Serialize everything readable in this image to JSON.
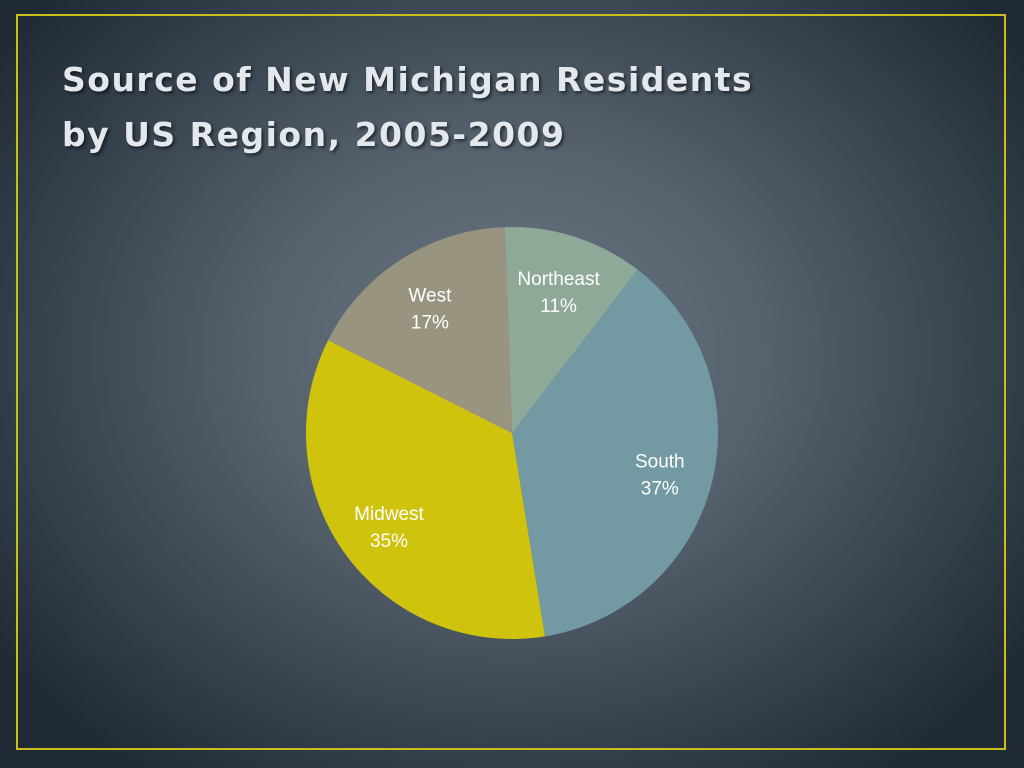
{
  "slide": {
    "title_line1": "Source of New Michigan Residents",
    "title_line2": "by US Region, 2005-2009"
  },
  "colors": {
    "frame": "#c8bf1a",
    "title": "#e4e8ec"
  },
  "chart_data": {
    "type": "pie",
    "title": "Source of New Michigan Residents by US Region, 2005-2009",
    "start_angle_deg": -2,
    "direction": "clockwise",
    "slices": [
      {
        "label": "Northeast",
        "value": 11,
        "display": "11%",
        "color": "#8ea998"
      },
      {
        "label": "South",
        "value": 37,
        "display": "37%",
        "color": "#7399a3"
      },
      {
        "label": "Midwest",
        "value": 35,
        "display": "35%",
        "color": "#d0c30e"
      },
      {
        "label": "West",
        "value": 17,
        "display": "17%",
        "color": "#999480"
      }
    ],
    "legend": "none",
    "data_labels": "on slices"
  }
}
